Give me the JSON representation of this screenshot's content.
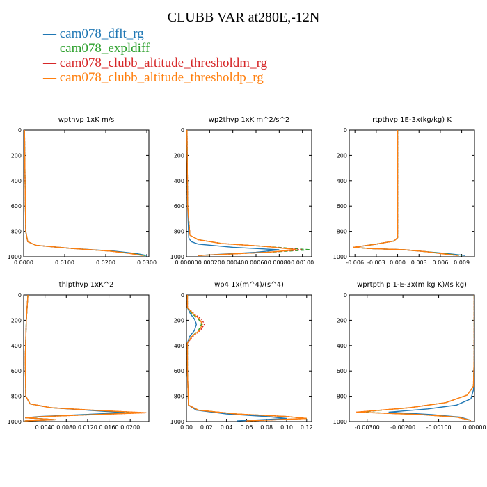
{
  "page_title": "CLUBB VAR at280E,-12N",
  "colors": {
    "cam078_dflt_rg": "#1f77b4",
    "cam078_expldiff": "#2ca02c",
    "cam078_clubb_altitude_thresholdm_rg": "#d62728",
    "cam078_clubb_altitude_thresholdp_rg": "#ff7f0e"
  },
  "legend": [
    {
      "label": "cam078_dflt_rg",
      "color": "#1f77b4"
    },
    {
      "label": "cam078_expldiff",
      "color": "#2ca02c"
    },
    {
      "label": "cam078_clubb_altitude_thresholdm_rg",
      "color": "#d62728"
    },
    {
      "label": "cam078_clubb_altitude_thresholdp_rg",
      "color": "#ff7f0e"
    }
  ],
  "chart_data": [
    {
      "type": "line",
      "title": "wpthvp  1xK m/s",
      "xlim": [
        0,
        0.0305
      ],
      "ylim": [
        1000,
        0
      ],
      "xticks": [
        0,
        0.01,
        0.02,
        0.03
      ],
      "xticklabels": [
        "0.0000",
        "0.0100",
        "0.0200",
        "0.0300"
      ],
      "yticks": [
        0,
        200,
        400,
        600,
        800,
        1000
      ],
      "yticklabels": [
        "0",
        "200",
        "400",
        "600",
        "800",
        "1000"
      ],
      "series": [
        {
          "name": "cam078_dflt_rg",
          "dash": "",
          "x": [
            0.0002,
            0.0003,
            0.0005,
            0.001,
            0.003,
            0.012,
            0.022,
            0.0275,
            0.03
          ],
          "y": [
            0,
            300,
            800,
            880,
            910,
            935,
            955,
            975,
            990
          ]
        },
        {
          "name": "cam078_expldiff",
          "dash": "5,3",
          "x": [
            0.0002,
            0.0003,
            0.0005,
            0.001,
            0.003,
            0.012,
            0.021,
            0.0265,
            0.0295
          ],
          "y": [
            0,
            300,
            800,
            880,
            910,
            935,
            955,
            975,
            990
          ]
        },
        {
          "name": "cam078_clubb_altitude_thresholdm_rg",
          "dash": "2,2",
          "x": [
            0.0002,
            0.0003,
            0.0005,
            0.001,
            0.003,
            0.012,
            0.021,
            0.026,
            0.029
          ],
          "y": [
            0,
            300,
            800,
            880,
            910,
            935,
            955,
            975,
            990
          ]
        },
        {
          "name": "cam078_clubb_altitude_thresholdp_rg",
          "dash": "",
          "x": [
            0.0002,
            0.0003,
            0.0005,
            0.001,
            0.003,
            0.012,
            0.021,
            0.026,
            0.029
          ],
          "y": [
            0,
            300,
            800,
            880,
            910,
            935,
            955,
            975,
            990
          ]
        }
      ]
    },
    {
      "type": "line",
      "title": "wp2thvp  1xK m^2/s^2",
      "xlim": [
        0,
        0.00108
      ],
      "ylim": [
        1000,
        0
      ],
      "xticks": [
        0,
        0.0002,
        0.0004,
        0.0006,
        0.0008,
        0.001
      ],
      "xticklabels": [
        "0.00000",
        "0.00020",
        "0.00040",
        "0.00060",
        "0.00080",
        "0.00100"
      ],
      "yticks": [
        0,
        200,
        400,
        600,
        800,
        1000
      ],
      "yticklabels": [
        "0",
        "200",
        "400",
        "600",
        "800",
        "1000"
      ],
      "series": [
        {
          "name": "cam078_dflt_rg",
          "dash": "",
          "x": [
            5e-06,
            1e-05,
            2e-05,
            4e-05,
            0.0001,
            0.0004,
            0.0008,
            0.0006,
            0.0001
          ],
          "y": [
            0,
            600,
            850,
            880,
            900,
            925,
            945,
            965,
            990
          ]
        },
        {
          "name": "cam078_expldiff",
          "dash": "5,3",
          "x": [
            5e-06,
            1e-05,
            3e-05,
            0.0001,
            0.0003,
            0.0007,
            0.00107,
            0.0007,
            0.0001
          ],
          "y": [
            0,
            600,
            830,
            865,
            895,
            920,
            945,
            965,
            990
          ]
        },
        {
          "name": "cam078_clubb_altitude_thresholdm_rg",
          "dash": "2,2",
          "x": [
            5e-06,
            1e-05,
            3e-05,
            0.0001,
            0.0003,
            0.0007,
            0.001,
            0.0007,
            0.0001
          ],
          "y": [
            0,
            600,
            830,
            865,
            895,
            920,
            945,
            965,
            990
          ]
        },
        {
          "name": "cam078_clubb_altitude_thresholdp_rg",
          "dash": "",
          "x": [
            5e-06,
            1e-05,
            3e-05,
            0.0001,
            0.0003,
            0.0007,
            0.00095,
            0.0007,
            0.0001
          ],
          "y": [
            0,
            600,
            830,
            865,
            895,
            920,
            945,
            965,
            990
          ]
        }
      ]
    },
    {
      "type": "line",
      "title": "rtpthvp  1E-3x(kg/kg) K",
      "xlim": [
        -0.0068,
        0.0108
      ],
      "ylim": [
        1000,
        0
      ],
      "xticks": [
        -0.006,
        -0.003,
        0,
        0.003,
        0.006,
        0.009
      ],
      "xticklabels": [
        "-0.006",
        "-0.003",
        "0.000",
        "0.003",
        "0.006",
        "0.009"
      ],
      "yticks": [
        0,
        200,
        400,
        600,
        800,
        1000
      ],
      "yticklabels": [
        "0",
        "200",
        "400",
        "600",
        "800",
        "1000"
      ],
      "series": [
        {
          "name": "cam078_dflt_rg",
          "dash": "",
          "x": [
            0,
            0,
            0,
            -0.0005,
            -0.003,
            -0.0062,
            -0.004,
            0.001,
            0.004,
            0.007,
            0.0095
          ],
          "y": [
            0,
            400,
            850,
            875,
            900,
            925,
            935,
            945,
            960,
            975,
            990
          ]
        },
        {
          "name": "cam078_expldiff",
          "dash": "5,3",
          "x": [
            0,
            0,
            0,
            -0.0005,
            -0.003,
            -0.0062,
            -0.004,
            0.001,
            0.004,
            0.0065,
            0.009
          ],
          "y": [
            0,
            400,
            850,
            875,
            900,
            925,
            935,
            945,
            960,
            975,
            990
          ]
        },
        {
          "name": "cam078_clubb_altitude_thresholdm_rg",
          "dash": "2,2",
          "x": [
            0,
            0,
            0,
            -0.0005,
            -0.003,
            -0.0062,
            -0.004,
            0.001,
            0.004,
            0.006,
            0.0085
          ],
          "y": [
            0,
            400,
            850,
            875,
            900,
            925,
            935,
            945,
            960,
            975,
            990
          ]
        },
        {
          "name": "cam078_clubb_altitude_thresholdp_rg",
          "dash": "",
          "x": [
            0,
            0,
            0,
            -0.0005,
            -0.003,
            -0.0062,
            -0.004,
            0.001,
            0.004,
            0.006,
            0.0085
          ],
          "y": [
            0,
            400,
            850,
            875,
            900,
            925,
            935,
            945,
            960,
            975,
            990
          ]
        }
      ]
    },
    {
      "type": "line",
      "title": "thlpthvp  1xK^2",
      "xlim": [
        0,
        0.0235
      ],
      "ylim": [
        1000,
        0
      ],
      "xticks": [
        0.004,
        0.008,
        0.012,
        0.016,
        0.02
      ],
      "xticklabels": [
        "0.0040",
        "0.0080",
        "0.0120",
        "0.0160",
        "0.0200"
      ],
      "yticks": [
        0,
        200,
        400,
        600,
        800,
        1000
      ],
      "yticklabels": [
        "0",
        "200",
        "400",
        "600",
        "800",
        "1000"
      ],
      "series": [
        {
          "name": "cam078_dflt_rg",
          "dash": "",
          "x": [
            0.0008,
            0.0005,
            0.0003,
            0.0004,
            0.0012,
            0.005,
            0.012,
            0.019,
            0.003,
            0.0003,
            0.006,
            0.0002
          ],
          "y": [
            0,
            200,
            500,
            800,
            860,
            890,
            910,
            930,
            960,
            970,
            985,
            995
          ]
        },
        {
          "name": "cam078_expldiff",
          "dash": "5,3",
          "x": [
            0.0008,
            0.0005,
            0.0003,
            0.0004,
            0.0012,
            0.005,
            0.013,
            0.022,
            0.004,
            0.0003,
            0.006,
            0.0002
          ],
          "y": [
            0,
            200,
            500,
            800,
            860,
            890,
            910,
            930,
            960,
            970,
            985,
            995
          ]
        },
        {
          "name": "cam078_clubb_altitude_thresholdm_rg",
          "dash": "2,2",
          "x": [
            0.0008,
            0.0005,
            0.0003,
            0.0004,
            0.0012,
            0.005,
            0.013,
            0.023,
            0.004,
            0.0003,
            0.006,
            0.0002
          ],
          "y": [
            0,
            200,
            500,
            800,
            860,
            890,
            910,
            930,
            960,
            970,
            985,
            995
          ]
        },
        {
          "name": "cam078_clubb_altitude_thresholdp_rg",
          "dash": "",
          "x": [
            0.0008,
            0.0005,
            0.0003,
            0.0004,
            0.0012,
            0.005,
            0.013,
            0.023,
            0.004,
            0.0003,
            0.006,
            0.0002
          ],
          "y": [
            0,
            200,
            500,
            800,
            860,
            890,
            910,
            930,
            960,
            970,
            985,
            995
          ]
        }
      ]
    },
    {
      "type": "line",
      "title": "wp4  1x(m^4)/(s^4)",
      "xlim": [
        0,
        0.125
      ],
      "ylim": [
        1000,
        0
      ],
      "xticks": [
        0,
        0.02,
        0.04,
        0.06,
        0.08,
        0.1,
        0.12
      ],
      "xticklabels": [
        "0.00",
        "0.02",
        "0.04",
        "0.06",
        "0.08",
        "0.10",
        "0.12"
      ],
      "yticks": [
        0,
        200,
        400,
        600,
        800,
        1000
      ],
      "yticklabels": [
        "0",
        "200",
        "400",
        "600",
        "800",
        "1000"
      ],
      "series": [
        {
          "name": "cam078_dflt_rg",
          "dash": "",
          "x": [
            0.001,
            0.001,
            0.004,
            0.008,
            0.01,
            0.008,
            0.003,
            0.001,
            0.001,
            0.002,
            0.01,
            0.04,
            0.08,
            0.1,
            0.05
          ],
          "y": [
            0,
            100,
            150,
            190,
            230,
            280,
            330,
            380,
            600,
            870,
            910,
            940,
            960,
            975,
            995
          ]
        },
        {
          "name": "cam078_expldiff",
          "dash": "5,3",
          "x": [
            0.001,
            0.001,
            0.006,
            0.012,
            0.015,
            0.012,
            0.005,
            0.001,
            0.001,
            0.002,
            0.012,
            0.05,
            0.1,
            0.12,
            0.06
          ],
          "y": [
            0,
            100,
            150,
            190,
            230,
            280,
            330,
            380,
            600,
            870,
            910,
            940,
            960,
            975,
            995
          ]
        },
        {
          "name": "cam078_clubb_altitude_thresholdm_rg",
          "dash": "2,2",
          "x": [
            0.001,
            0.001,
            0.008,
            0.015,
            0.018,
            0.014,
            0.006,
            0.001,
            0.001,
            0.002,
            0.012,
            0.05,
            0.1,
            0.12,
            0.06
          ],
          "y": [
            0,
            100,
            150,
            190,
            230,
            280,
            330,
            380,
            600,
            870,
            910,
            940,
            960,
            975,
            995
          ]
        },
        {
          "name": "cam078_clubb_altitude_thresholdp_rg",
          "dash": "",
          "x": [
            0.001,
            0.001,
            0.007,
            0.013,
            0.016,
            0.013,
            0.005,
            0.001,
            0.001,
            0.002,
            0.012,
            0.05,
            0.1,
            0.12,
            0.06
          ],
          "y": [
            0,
            100,
            150,
            190,
            230,
            280,
            330,
            380,
            600,
            870,
            910,
            940,
            960,
            975,
            995
          ]
        }
      ]
    },
    {
      "type": "line",
      "title": "wprtpthlp  1-E-3x(m kg K)/(s kg)",
      "xlim": [
        -0.0035,
        0
      ],
      "ylim": [
        1000,
        0
      ],
      "xticks": [
        -0.003,
        -0.002,
        -0.001,
        0
      ],
      "xticklabels": [
        "-0.00300",
        "-0.00200",
        "-0.00100",
        "0.00000"
      ],
      "yticks": [
        0,
        200,
        400,
        600,
        800,
        1000
      ],
      "yticklabels": [
        "0",
        "200",
        "400",
        "600",
        "800",
        "1000"
      ],
      "series": [
        {
          "name": "cam078_dflt_rg",
          "dash": "",
          "x": [
            -1e-05,
            -1e-05,
            -3e-05,
            -0.0001,
            -0.0005,
            -0.0013,
            -0.0024,
            -0.0012,
            -0.0004,
            -0.0001
          ],
          "y": [
            0,
            500,
            750,
            820,
            870,
            900,
            925,
            945,
            965,
            990
          ]
        },
        {
          "name": "cam078_expldiff",
          "dash": "5,3",
          "x": [
            -1e-05,
            -1e-05,
            -3e-05,
            -0.0002,
            -0.0008,
            -0.0018,
            -0.0032,
            -0.0015,
            -0.0005,
            -0.0001
          ],
          "y": [
            0,
            500,
            720,
            790,
            850,
            890,
            925,
            945,
            965,
            990
          ]
        },
        {
          "name": "cam078_clubb_altitude_thresholdm_rg",
          "dash": "2,2",
          "x": [
            -1e-05,
            -1e-05,
            -3e-05,
            -0.0002,
            -0.0008,
            -0.0018,
            -0.0033,
            -0.0015,
            -0.0005,
            -0.0001
          ],
          "y": [
            0,
            500,
            720,
            790,
            850,
            890,
            925,
            945,
            965,
            990
          ]
        },
        {
          "name": "cam078_clubb_altitude_thresholdp_rg",
          "dash": "",
          "x": [
            -1e-05,
            -1e-05,
            -3e-05,
            -0.0002,
            -0.0008,
            -0.0018,
            -0.0033,
            -0.0015,
            -0.0005,
            -0.0001
          ],
          "y": [
            0,
            500,
            720,
            790,
            850,
            890,
            925,
            945,
            965,
            990
          ]
        }
      ]
    }
  ]
}
